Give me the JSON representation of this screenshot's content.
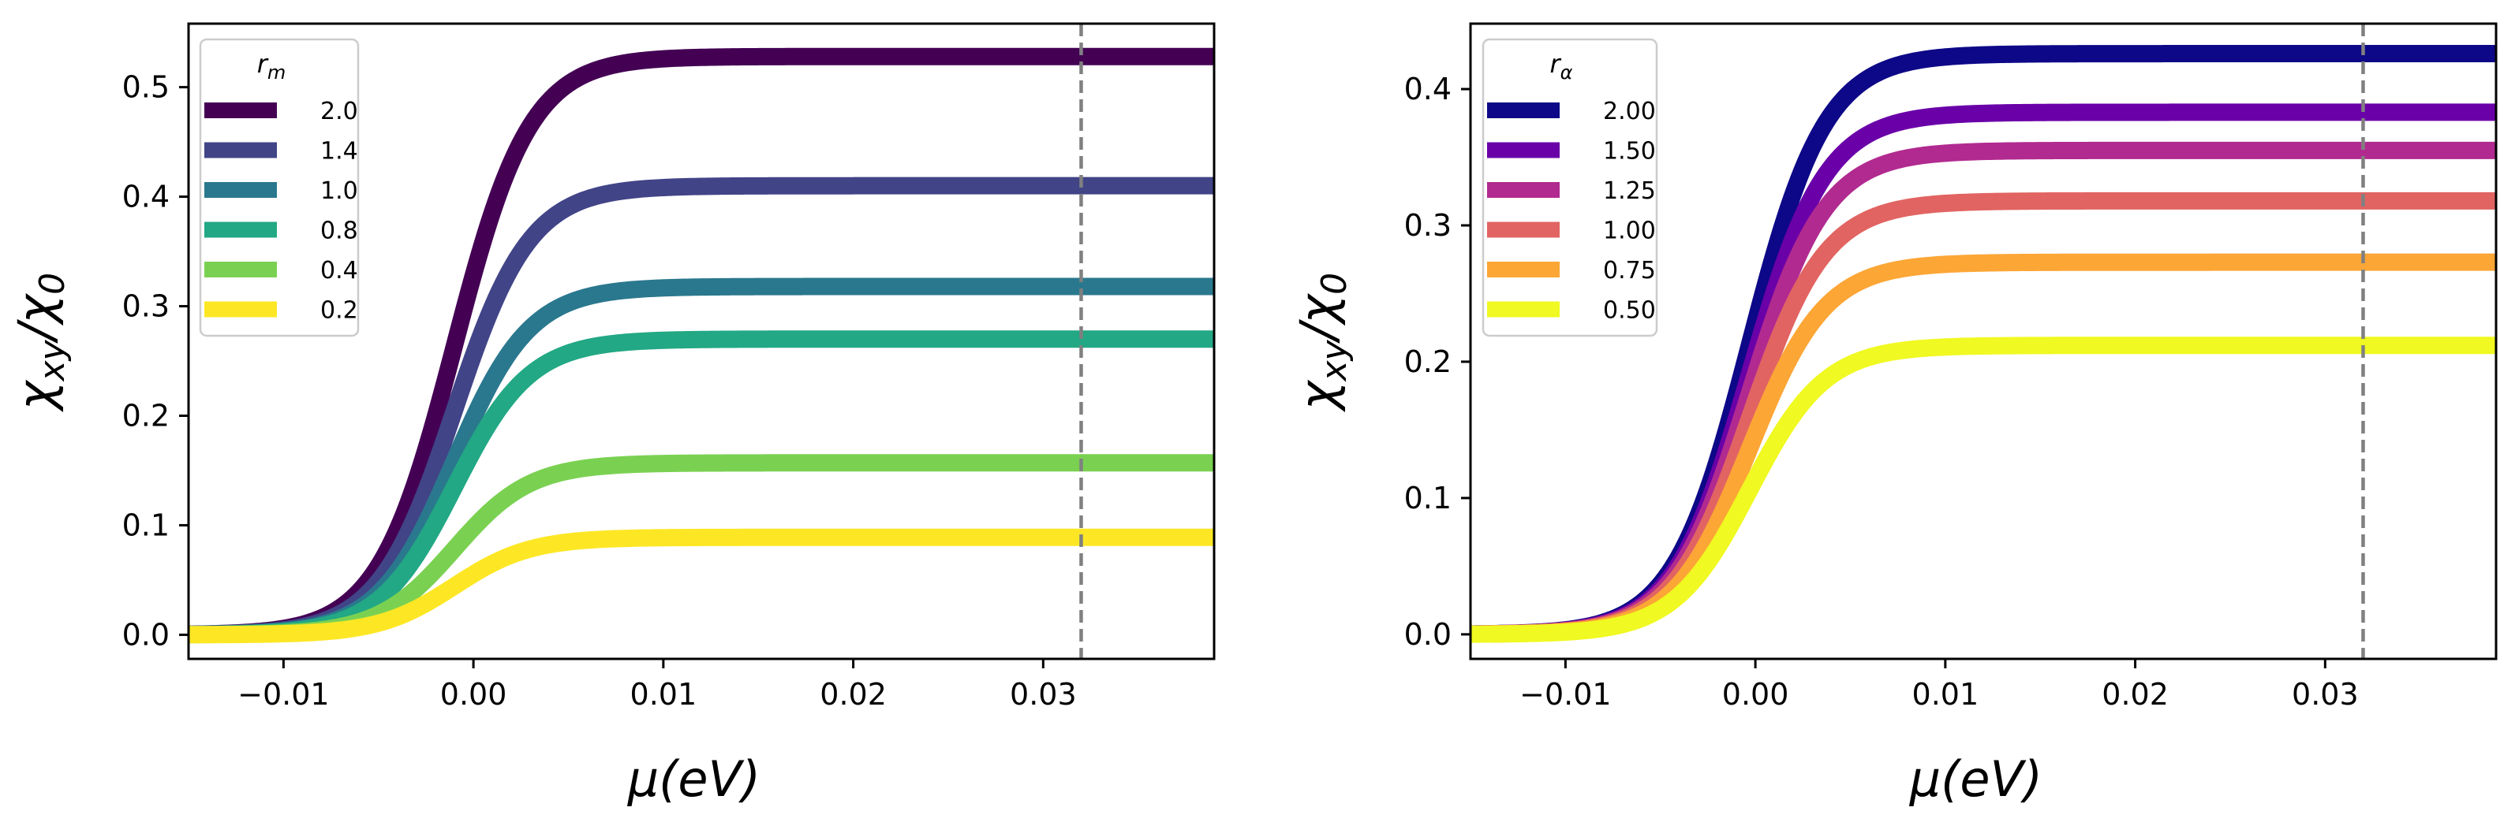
{
  "chart_data": [
    {
      "type": "line",
      "panel": "left",
      "xlabel": "μ(eV)",
      "ylabel": "χxy/χ0",
      "ylabel_parts": [
        "χ",
        "xy",
        "/χ",
        "0"
      ],
      "xlim": [
        -0.015,
        0.039
      ],
      "ylim": [
        -0.022,
        0.558
      ],
      "xticks": [
        -0.01,
        0.0,
        0.01,
        0.02,
        0.03
      ],
      "xtick_labels": [
        "−0.01",
        "0.00",
        "0.01",
        "0.02",
        "0.03"
      ],
      "yticks": [
        0.0,
        0.1,
        0.2,
        0.3,
        0.4,
        0.5
      ],
      "ytick_labels": [
        "0.0",
        "0.1",
        "0.2",
        "0.3",
        "0.4",
        "0.5"
      ],
      "vline_x": 0.032,
      "vline_color": "#808080",
      "legend_title": "r",
      "legend_title_sub": "m",
      "legend_location": "top-left",
      "step_center_x": -0.001,
      "step_width": 0.002,
      "series": [
        {
          "name": "2.0",
          "plateau": 0.528,
          "color": "#440154"
        },
        {
          "name": "1.4",
          "plateau": 0.41,
          "color": "#414487"
        },
        {
          "name": "1.0",
          "plateau": 0.318,
          "color": "#2a788e"
        },
        {
          "name": "0.8",
          "plateau": 0.27,
          "color": "#22a884"
        },
        {
          "name": "0.4",
          "plateau": 0.157,
          "color": "#7ad151"
        },
        {
          "name": "0.2",
          "plateau": 0.089,
          "color": "#fde725"
        }
      ]
    },
    {
      "type": "line",
      "panel": "right",
      "xlabel": "μ(eV)",
      "ylabel": "χxy/χ0",
      "ylabel_parts": [
        "χ",
        "xy",
        "/χ",
        "0"
      ],
      "xlim": [
        -0.015,
        0.039
      ],
      "ylim": [
        -0.018,
        0.448
      ],
      "xticks": [
        -0.01,
        0.0,
        0.01,
        0.02,
        0.03
      ],
      "xtick_labels": [
        "−0.01",
        "0.00",
        "0.01",
        "0.02",
        "0.03"
      ],
      "yticks": [
        0.0,
        0.1,
        0.2,
        0.3,
        0.4
      ],
      "ytick_labels": [
        "0.0",
        "0.1",
        "0.2",
        "0.3",
        "0.4"
      ],
      "vline_x": 0.032,
      "vline_color": "#808080",
      "legend_title": "r",
      "legend_title_sub": "α",
      "legend_location": "top-left",
      "step_center_x": -0.0003,
      "step_width": 0.002,
      "series": [
        {
          "name": "2.00",
          "plateau": 0.426,
          "color": "#0d0887"
        },
        {
          "name": "1.50",
          "plateau": 0.383,
          "color": "#6a00a8"
        },
        {
          "name": "1.25",
          "plateau": 0.355,
          "color": "#b12a90"
        },
        {
          "name": "1.00",
          "plateau": 0.318,
          "color": "#e16462"
        },
        {
          "name": "0.75",
          "plateau": 0.273,
          "color": "#fca636"
        },
        {
          "name": "0.50",
          "plateau": 0.212,
          "color": "#f0f921"
        }
      ]
    }
  ]
}
